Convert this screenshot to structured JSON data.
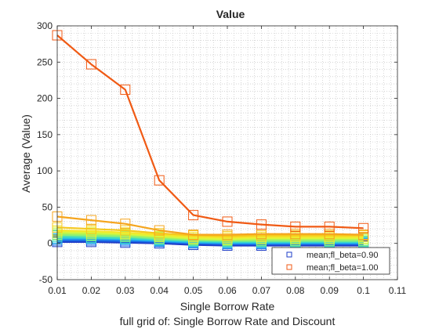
{
  "chart_data": {
    "type": "line",
    "title": "Value",
    "xlabel": "Single Borrow Rate",
    "ylabel": "Average (Value)",
    "subtitle": "full grid of: Single Borrow Rate and Discount",
    "xlim": [
      0.01,
      0.11
    ],
    "ylim": [
      -50,
      300
    ],
    "x_ticks": [
      "0.01",
      "0.02",
      "0.03",
      "0.04",
      "0.05",
      "0.06",
      "0.07",
      "0.08",
      "0.09",
      "0.1",
      "0.11"
    ],
    "y_ticks": [
      "-50",
      "0",
      "50",
      "100",
      "150",
      "200",
      "250",
      "300"
    ],
    "grid": "minor dotted",
    "legend_position": "bottom-right",
    "x": [
      0.01,
      0.02,
      0.03,
      0.04,
      0.05,
      0.06,
      0.07,
      0.08,
      0.09,
      0.1
    ],
    "series": [
      {
        "name": "",
        "color": "#1e3cc8",
        "marker": "square",
        "values": [
          2,
          2,
          1,
          0,
          -2,
          -3,
          -3,
          -3,
          -3,
          -3
        ]
      },
      {
        "name": "",
        "color": "#1a6ae6",
        "marker": "square",
        "values": [
          4,
          4,
          3,
          2,
          0,
          -1,
          -1,
          -1,
          -1,
          -1
        ]
      },
      {
        "name": "",
        "color": "#1e96f0",
        "marker": "square",
        "values": [
          6,
          6,
          5,
          3,
          1,
          0,
          0,
          0,
          0,
          0
        ]
      },
      {
        "name": "",
        "color": "#27bde6",
        "marker": "square",
        "values": [
          7,
          7,
          6,
          4,
          2,
          1,
          1,
          1,
          1,
          1
        ]
      },
      {
        "name": "",
        "color": "#3cd7c8",
        "marker": "square",
        "values": [
          9,
          8,
          7,
          5,
          3,
          2,
          2,
          2,
          2,
          2
        ]
      },
      {
        "name": "",
        "color": "#5fe6a0",
        "marker": "square",
        "values": [
          11,
          10,
          9,
          6,
          4,
          3,
          3,
          3,
          3,
          3
        ]
      },
      {
        "name": "",
        "color": "#8cf078",
        "marker": "square",
        "values": [
          12,
          11,
          10,
          7,
          5,
          4,
          4,
          4,
          4,
          4
        ]
      },
      {
        "name": "",
        "color": "#b4f550",
        "marker": "square",
        "values": [
          14,
          13,
          12,
          9,
          6,
          5,
          6,
          6,
          6,
          6
        ]
      },
      {
        "name": "",
        "color": "#dcf53c",
        "marker": "square",
        "values": [
          16,
          15,
          13,
          10,
          7,
          6,
          7,
          7,
          7,
          7
        ]
      },
      {
        "name": "",
        "color": "#f5e628",
        "marker": "square",
        "values": [
          18,
          17,
          15,
          12,
          9,
          8,
          9,
          9,
          9,
          9
        ]
      },
      {
        "name": "",
        "color": "#f5c81e",
        "marker": "square",
        "values": [
          22,
          20,
          18,
          14,
          11,
          10,
          11,
          11,
          11,
          11
        ]
      },
      {
        "name": "",
        "color": "#f5a51e",
        "marker": "square",
        "values": [
          37,
          32,
          27,
          18,
          12,
          12,
          13,
          13,
          13,
          12
        ]
      },
      {
        "name": "mean;fl_beta=1.00",
        "color": "#f05a14",
        "marker": "square",
        "values": [
          287,
          247,
          212,
          87,
          39,
          30,
          26,
          23,
          23,
          21
        ]
      }
    ],
    "legend": [
      {
        "label": "mean;fl_beta=0.90",
        "color": "#1e3cc8"
      },
      {
        "label": "mean;fl_beta=1.00",
        "color": "#f05a14"
      }
    ]
  }
}
